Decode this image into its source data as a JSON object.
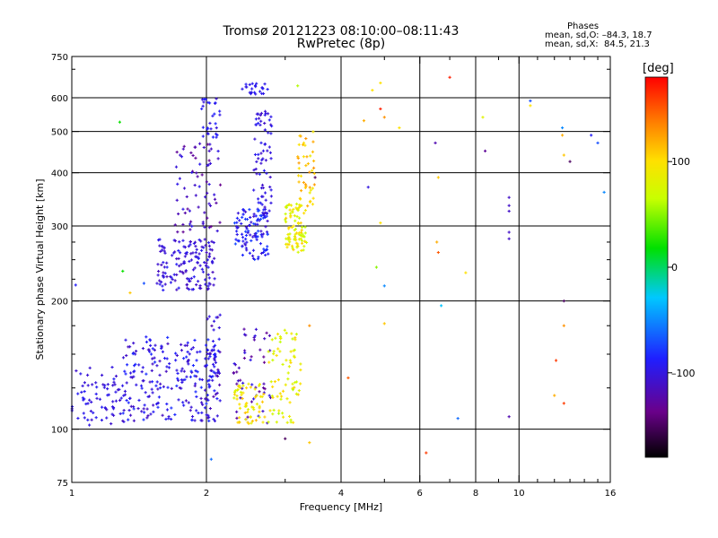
{
  "title": {
    "line1": "Tromsø 20121223 08:10:00–08:11:43",
    "line2": "RwPretec (8p)"
  },
  "stats": {
    "header": "Phases",
    "o_line": "mean, sd,O: –84.3, 18.7",
    "x_line": "mean, sd,X:  84.5, 21.3"
  },
  "colorbar": {
    "unit": "[deg]",
    "range": [
      -180,
      180
    ],
    "ticks": [
      100,
      0,
      -100
    ],
    "tick_labels": [
      "100",
      "0",
      "–100"
    ],
    "colormap": "rainbow (black → purple → blue → cyan → green → yellow → orange → red)"
  },
  "chart_data": {
    "type": "scatter",
    "title": "Tromsø 20121223 08:10:00–08:11:43",
    "subtitle": "RwPretec (8p)",
    "xlabel": "Frequency [MHz]",
    "ylabel": "Stationary phase Virtual Height [km]",
    "x_scale": "log",
    "y_scale": "log",
    "xlim": [
      1,
      16
    ],
    "ylim": [
      75,
      750
    ],
    "x_ticks": [
      1,
      2,
      4,
      6,
      8,
      10,
      16
    ],
    "x_tick_labels": [
      "1",
      "2",
      "4",
      "6",
      "8",
      "10",
      "16"
    ],
    "x_minor_ticks": [
      3,
      5,
      7,
      9,
      11,
      12,
      13,
      14,
      15
    ],
    "y_ticks": [
      75,
      100,
      200,
      300,
      400,
      500,
      600,
      750
    ],
    "y_tick_labels": [
      "75",
      "100",
      "200",
      "300",
      "400",
      "500",
      "600",
      "750"
    ],
    "y_minor_ticks": [
      125,
      150,
      175,
      225,
      250,
      275,
      700
    ],
    "grid": true,
    "grid_x": [
      2,
      4,
      6,
      8,
      10
    ],
    "grid_y": [
      100,
      200,
      300,
      400,
      500,
      600
    ],
    "color_by": "phase [deg]",
    "clusters": [
      {
        "f": [
          1.0,
          1.3
        ],
        "h": [
          102,
          140
        ],
        "phase": [
          -110,
          -90
        ],
        "n": 70
      },
      {
        "f": [
          1.3,
          2.1
        ],
        "h": [
          104,
          165
        ],
        "phase": [
          -115,
          -80
        ],
        "n": 230
      },
      {
        "f": [
          2.0,
          2.15
        ],
        "h": [
          104,
          190
        ],
        "phase": [
          -120,
          -85
        ],
        "n": 50
      },
      {
        "f": [
          2.3,
          2.8
        ],
        "h": [
          103,
          175
        ],
        "phase": [
          -135,
          -95
        ],
        "n": 50
      },
      {
        "f": [
          2.3,
          2.7
        ],
        "h": [
          103,
          128
        ],
        "phase": [
          75,
          115
        ],
        "n": 60
      },
      {
        "f": [
          2.75,
          3.25
        ],
        "h": [
          103,
          172
        ],
        "phase": [
          60,
          110
        ],
        "n": 75
      },
      {
        "f": [
          1.55,
          2.1
        ],
        "h": [
          212,
          280
        ],
        "phase": [
          -115,
          -90
        ],
        "n": 150
      },
      {
        "f": [
          1.7,
          2.15
        ],
        "h": [
          290,
          470
        ],
        "phase": [
          -135,
          -95
        ],
        "n": 70
      },
      {
        "f": [
          1.95,
          2.15
        ],
        "h": [
          480,
          600
        ],
        "phase": [
          -105,
          -85
        ],
        "n": 30
      },
      {
        "f": [
          2.3,
          2.75
        ],
        "h": [
          250,
          330
        ],
        "phase": [
          -110,
          -70
        ],
        "n": 110
      },
      {
        "f": [
          2.55,
          2.8
        ],
        "h": [
          320,
          560
        ],
        "phase": [
          -110,
          -90
        ],
        "n": 70
      },
      {
        "f": [
          2.4,
          2.75
        ],
        "h": [
          610,
          650
        ],
        "phase": [
          -100,
          -90
        ],
        "n": 25
      },
      {
        "f": [
          3.0,
          3.35
        ],
        "h": [
          260,
          340
        ],
        "phase": [
          60,
          110
        ],
        "n": 90
      },
      {
        "f": [
          3.2,
          3.5
        ],
        "h": [
          330,
          500
        ],
        "phase": [
          85,
          130
        ],
        "n": 45
      }
    ],
    "points": [
      {
        "f": 1.02,
        "h": 218,
        "phase": -90
      },
      {
        "f": 1.28,
        "h": 526,
        "phase": 20
      },
      {
        "f": 1.3,
        "h": 235,
        "phase": 20
      },
      {
        "f": 1.35,
        "h": 209,
        "phase": 110
      },
      {
        "f": 1.45,
        "h": 220,
        "phase": -70
      },
      {
        "f": 2.05,
        "h": 85,
        "phase": -60
      },
      {
        "f": 3.0,
        "h": 95,
        "phase": -150
      },
      {
        "f": 3.4,
        "h": 93,
        "phase": 110
      },
      {
        "f": 3.2,
        "h": 640,
        "phase": 60
      },
      {
        "f": 3.4,
        "h": 175,
        "phase": 130
      },
      {
        "f": 3.5,
        "h": 390,
        "phase": -150
      },
      {
        "f": 4.15,
        "h": 132,
        "phase": 150
      },
      {
        "f": 4.5,
        "h": 530,
        "phase": 120
      },
      {
        "f": 4.6,
        "h": 370,
        "phase": -100
      },
      {
        "f": 4.7,
        "h": 625,
        "phase": 100
      },
      {
        "f": 4.8,
        "h": 240,
        "phase": 50
      },
      {
        "f": 4.9,
        "h": 305,
        "phase": 100
      },
      {
        "f": 4.9,
        "h": 565,
        "phase": 170
      },
      {
        "f": 4.9,
        "h": 650,
        "phase": 100
      },
      {
        "f": 5.0,
        "h": 217,
        "phase": -50
      },
      {
        "f": 5.0,
        "h": 177,
        "phase": 110
      },
      {
        "f": 5.0,
        "h": 540,
        "phase": 130
      },
      {
        "f": 5.4,
        "h": 510,
        "phase": 100
      },
      {
        "f": 6.2,
        "h": 88,
        "phase": 160
      },
      {
        "f": 6.5,
        "h": 470,
        "phase": -120
      },
      {
        "f": 6.55,
        "h": 275,
        "phase": 120
      },
      {
        "f": 6.6,
        "h": 260,
        "phase": 150
      },
      {
        "f": 6.6,
        "h": 390,
        "phase": 110
      },
      {
        "f": 6.7,
        "h": 195,
        "phase": -30
      },
      {
        "f": 7.0,
        "h": 670,
        "phase": 170
      },
      {
        "f": 7.3,
        "h": 106,
        "phase": -60
      },
      {
        "f": 7.6,
        "h": 233,
        "phase": 100
      },
      {
        "f": 8.3,
        "h": 540,
        "phase": 80
      },
      {
        "f": 8.4,
        "h": 450,
        "phase": -130
      },
      {
        "f": 9.5,
        "h": 350,
        "phase": -110
      },
      {
        "f": 9.5,
        "h": 335,
        "phase": -110
      },
      {
        "f": 9.5,
        "h": 325,
        "phase": -110
      },
      {
        "f": 9.5,
        "h": 290,
        "phase": -110
      },
      {
        "f": 9.5,
        "h": 280,
        "phase": -110
      },
      {
        "f": 9.5,
        "h": 107,
        "phase": -120
      },
      {
        "f": 10.6,
        "h": 590,
        "phase": -70
      },
      {
        "f": 10.6,
        "h": 575,
        "phase": 100
      },
      {
        "f": 12.0,
        "h": 120,
        "phase": 120
      },
      {
        "f": 12.1,
        "h": 145,
        "phase": 160
      },
      {
        "f": 12.5,
        "h": 510,
        "phase": -50
      },
      {
        "f": 12.5,
        "h": 490,
        "phase": 120
      },
      {
        "f": 12.6,
        "h": 440,
        "phase": 110
      },
      {
        "f": 12.6,
        "h": 200,
        "phase": -150
      },
      {
        "f": 12.6,
        "h": 175,
        "phase": 130
      },
      {
        "f": 12.6,
        "h": 115,
        "phase": 160
      },
      {
        "f": 13.0,
        "h": 425,
        "phase": -150
      },
      {
        "f": 14.5,
        "h": 490,
        "phase": -90
      },
      {
        "f": 15.0,
        "h": 470,
        "phase": -70
      },
      {
        "f": 15.5,
        "h": 360,
        "phase": -50
      }
    ]
  }
}
